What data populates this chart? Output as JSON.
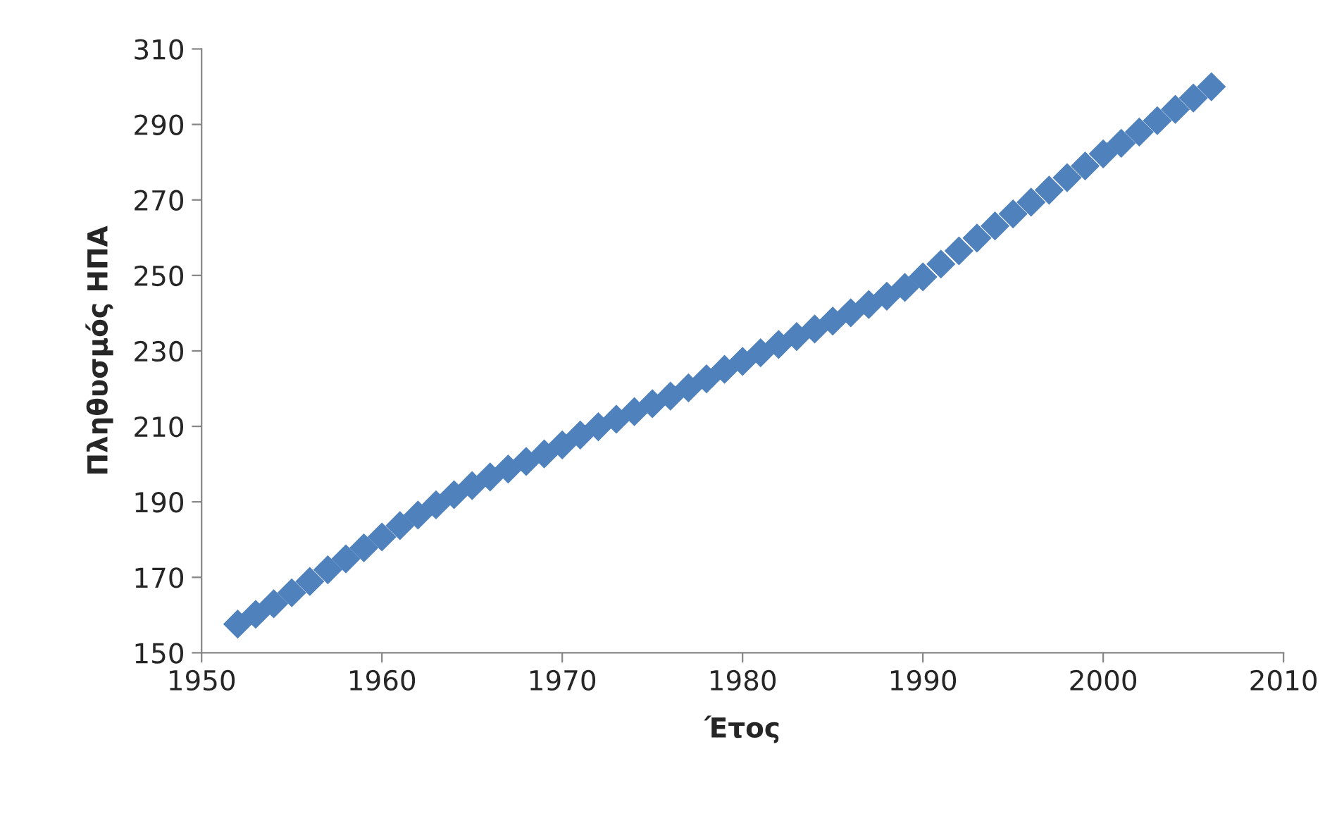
{
  "chart_data": {
    "type": "scatter",
    "xlabel": "Έτος",
    "ylabel": "Πληθυσμός ΗΠΑ",
    "x": [
      1952,
      1953,
      1954,
      1955,
      1956,
      1957,
      1958,
      1959,
      1960,
      1961,
      1962,
      1963,
      1964,
      1965,
      1966,
      1967,
      1968,
      1969,
      1970,
      1971,
      1972,
      1973,
      1974,
      1975,
      1976,
      1977,
      1978,
      1979,
      1980,
      1981,
      1982,
      1983,
      1984,
      1985,
      1986,
      1987,
      1988,
      1989,
      1990,
      1991,
      1992,
      1993,
      1994,
      1995,
      1996,
      1997,
      1998,
      1999,
      2000,
      2001,
      2002,
      2003,
      2004,
      2005,
      2006
    ],
    "series": [
      {
        "color": "#4f81bd",
        "values": [
          157.6,
          160.2,
          163.0,
          165.9,
          168.9,
          172.0,
          174.9,
          177.8,
          180.7,
          183.7,
          186.5,
          189.2,
          191.9,
          194.3,
          196.6,
          198.7,
          200.7,
          202.7,
          205.1,
          207.7,
          209.9,
          211.9,
          213.9,
          216.0,
          218.0,
          220.2,
          222.6,
          225.1,
          227.2,
          229.5,
          231.7,
          233.8,
          235.8,
          237.9,
          240.1,
          242.3,
          244.5,
          246.8,
          249.6,
          253.0,
          256.5,
          259.9,
          263.1,
          266.3,
          269.4,
          272.6,
          275.9,
          279.0,
          282.2,
          285.0,
          288.0,
          291.0,
          294.0,
          297.0,
          300.0
        ]
      }
    ],
    "xlim": [
      1950,
      2010
    ],
    "xticks": [
      1950,
      1960,
      1970,
      1980,
      1990,
      2000,
      2010
    ],
    "ylim": [
      150,
      310
    ],
    "yticks": [
      150,
      170,
      190,
      210,
      230,
      250,
      270,
      290,
      310
    ],
    "marker": "diamond",
    "grid": false,
    "legend": false
  }
}
